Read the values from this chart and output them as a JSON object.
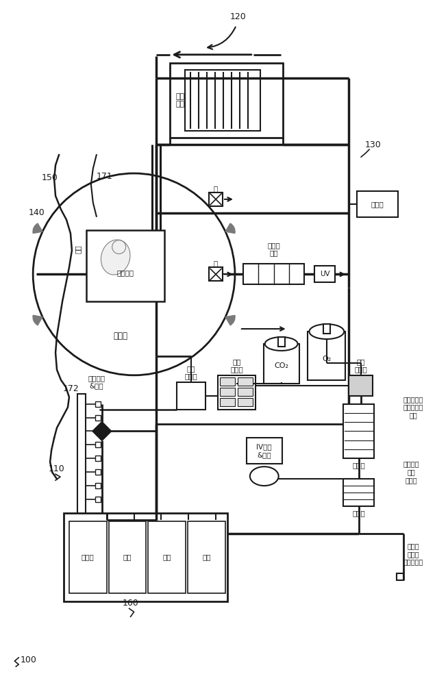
{
  "bg": "#ffffff",
  "black": "#1a1a1a",
  "gray": "#808080",
  "dgray": "#555555",
  "labels": {
    "100": "100",
    "110": "110",
    "120": "120",
    "130": "130",
    "140": "140",
    "150": "150",
    "160": "160",
    "171": "171",
    "172": "172",
    "heater": "加热\n元件",
    "pump": "泵",
    "membrane": "膜净化\n系统",
    "sensor": "传感器",
    "uv": "UV",
    "sterile_water": "无菌水",
    "amniotic": "人造羊水",
    "umbilical": "腄带",
    "gas_meter": "气气\n计量器",
    "gas_mixer": "气体\n混合器",
    "bubble": "气泡\n收集器",
    "sample": "样品端口\n&脂质",
    "dialyzer": "透析器",
    "filter": "过滤器",
    "iv": "IV流体\n&药物",
    "monitor": "监视器",
    "pressure": "压力",
    "flow": "流量",
    "temperature": "温度",
    "dialysate_waste": "透析流体\n废物\n排放管",
    "treated": "具有处理过\n的水的透析\n流体",
    "add_blood": "添加到\n血液的\n血液稀释剑",
    "O2": "O₂",
    "CO2": "CO₂"
  }
}
